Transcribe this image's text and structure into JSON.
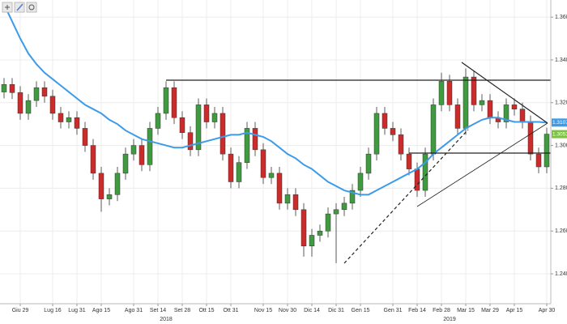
{
  "chart_data": {
    "type": "candlestick",
    "up_color": "#3f9b3f",
    "down_color": "#cc2b2b",
    "ma_color": "#3d9be9",
    "grid": true,
    "ylim": [
      1.226,
      1.368
    ],
    "yticks": [
      {
        "value": 1.36,
        "label": "1.3600"
      },
      {
        "value": 1.34,
        "label": "1.3400"
      },
      {
        "value": 1.32,
        "label": "1.3200"
      },
      {
        "value": 1.3,
        "label": "1.3000"
      },
      {
        "value": 1.28,
        "label": "1.2800"
      },
      {
        "value": 1.26,
        "label": "1.2600"
      },
      {
        "value": 1.24,
        "label": "1.2400"
      }
    ],
    "xticks": [
      {
        "value": 2,
        "label": "Giu 29"
      },
      {
        "value": 6,
        "label": "Lug 16"
      },
      {
        "value": 9,
        "label": "Lug 31"
      },
      {
        "value": 12,
        "label": "Ago 15"
      },
      {
        "value": 16,
        "label": "Ago 31"
      },
      {
        "value": 19,
        "label": "Set 14"
      },
      {
        "value": 22,
        "label": "Set 28"
      },
      {
        "value": 25,
        "label": "Ott 15"
      },
      {
        "value": 28,
        "label": "Ott 31"
      },
      {
        "value": 32,
        "label": "Nov 15"
      },
      {
        "value": 35,
        "label": "Nov 30"
      },
      {
        "value": 38,
        "label": "Dic 14"
      },
      {
        "value": 41,
        "label": "Dic 31"
      },
      {
        "value": 44,
        "label": "Gen 15"
      },
      {
        "value": 48,
        "label": "Gen 31"
      },
      {
        "value": 51,
        "label": "Feb 14"
      },
      {
        "value": 54,
        "label": "Feb 28"
      },
      {
        "value": 57,
        "label": "Mar 15"
      },
      {
        "value": 60,
        "label": "Mar 29"
      },
      {
        "value": 63,
        "label": "Apr 15"
      },
      {
        "value": 67,
        "label": "Apr 30"
      }
    ],
    "year_labels": [
      {
        "value": 20,
        "label": "2018"
      },
      {
        "value": 55,
        "label": "2019"
      }
    ],
    "open": [
      1.325,
      1.3285,
      1.3247,
      1.315,
      1.321,
      1.327,
      1.323,
      1.315,
      1.311,
      1.313,
      1.308,
      1.3,
      1.287,
      1.275,
      1.277,
      1.287,
      1.296,
      1.3,
      1.291,
      1.308,
      1.315,
      1.327,
      1.313,
      1.306,
      1.298,
      1.319,
      1.311,
      1.315,
      1.296,
      1.283,
      1.292,
      1.308,
      1.298,
      1.285,
      1.287,
      1.273,
      1.277,
      1.27,
      1.253,
      1.258,
      1.26,
      1.268,
      1.27,
      1.273,
      1.279,
      1.287,
      1.296,
      1.315,
      1.308,
      1.305,
      1.296,
      1.289,
      1.279,
      1.296,
      1.319,
      1.33,
      1.319,
      1.308,
      1.332,
      1.319,
      1.321,
      1.313,
      1.311,
      1.319,
      1.317,
      1.311,
      1.296,
      1.29
    ],
    "high": [
      1.3315,
      1.3315,
      1.3277,
      1.324,
      1.33,
      1.33,
      1.326,
      1.318,
      1.316,
      1.316,
      1.311,
      1.303,
      1.29,
      1.28,
      1.29,
      1.299,
      1.303,
      1.303,
      1.311,
      1.318,
      1.33,
      1.33,
      1.316,
      1.309,
      1.322,
      1.322,
      1.318,
      1.318,
      1.299,
      1.295,
      1.311,
      1.311,
      1.301,
      1.29,
      1.29,
      1.28,
      1.28,
      1.273,
      1.261,
      1.263,
      1.271,
      1.273,
      1.276,
      1.282,
      1.29,
      1.299,
      1.318,
      1.318,
      1.311,
      1.308,
      1.299,
      1.292,
      1.299,
      1.322,
      1.334,
      1.333,
      1.322,
      1.336,
      1.335,
      1.324,
      1.324,
      1.316,
      1.322,
      1.322,
      1.32,
      1.314,
      1.299,
      1.3083
    ],
    "low": [
      1.322,
      1.3217,
      1.312,
      1.312,
      1.318,
      1.32,
      1.312,
      1.308,
      1.308,
      1.305,
      1.297,
      1.284,
      1.269,
      1.272,
      1.274,
      1.284,
      1.293,
      1.288,
      1.288,
      1.305,
      1.312,
      1.31,
      1.303,
      1.295,
      1.295,
      1.308,
      1.308,
      1.293,
      1.28,
      1.28,
      1.289,
      1.295,
      1.282,
      1.282,
      1.27,
      1.27,
      1.267,
      1.248,
      1.248,
      1.255,
      1.257,
      1.245,
      1.267,
      1.27,
      1.276,
      1.284,
      1.293,
      1.305,
      1.302,
      1.293,
      1.286,
      1.276,
      1.276,
      1.293,
      1.316,
      1.316,
      1.305,
      1.305,
      1.316,
      1.316,
      1.31,
      1.308,
      1.308,
      1.314,
      1.308,
      1.293,
      1.287,
      1.287
    ],
    "close": [
      1.3285,
      1.3247,
      1.315,
      1.321,
      1.327,
      1.323,
      1.315,
      1.311,
      1.313,
      1.308,
      1.3,
      1.287,
      1.275,
      1.277,
      1.287,
      1.296,
      1.3,
      1.291,
      1.308,
      1.315,
      1.327,
      1.313,
      1.306,
      1.298,
      1.319,
      1.311,
      1.315,
      1.296,
      1.283,
      1.292,
      1.308,
      1.298,
      1.285,
      1.287,
      1.273,
      1.277,
      1.27,
      1.253,
      1.258,
      1.26,
      1.268,
      1.27,
      1.273,
      1.279,
      1.287,
      1.296,
      1.315,
      1.308,
      1.305,
      1.296,
      1.289,
      1.279,
      1.296,
      1.319,
      1.33,
      1.319,
      1.308,
      1.332,
      1.319,
      1.321,
      1.313,
      1.311,
      1.319,
      1.317,
      1.311,
      1.296,
      1.29,
      1.3053
    ],
    "moving_average": [
      1.366,
      1.358,
      1.35,
      1.343,
      1.338,
      1.334,
      1.331,
      1.328,
      1.325,
      1.322,
      1.319,
      1.317,
      1.315,
      1.312,
      1.31,
      1.307,
      1.305,
      1.303,
      1.302,
      1.301,
      1.3,
      1.299,
      1.299,
      1.3,
      1.301,
      1.302,
      1.303,
      1.304,
      1.305,
      1.305,
      1.306,
      1.305,
      1.304,
      1.302,
      1.299,
      1.296,
      1.294,
      1.291,
      1.289,
      1.286,
      1.283,
      1.281,
      1.279,
      1.278,
      1.277,
      1.277,
      1.279,
      1.281,
      1.283,
      1.285,
      1.287,
      1.289,
      1.292,
      1.296,
      1.299,
      1.302,
      1.305,
      1.308,
      1.31,
      1.312,
      1.313,
      1.313,
      1.312,
      1.311,
      1.311,
      1.311,
      1.311,
      1.3107
    ],
    "price_tags": [
      {
        "value": 1.3107,
        "color": "#3d9be9"
      },
      {
        "value": 1.3053,
        "color": "#7cc242"
      }
    ]
  }
}
